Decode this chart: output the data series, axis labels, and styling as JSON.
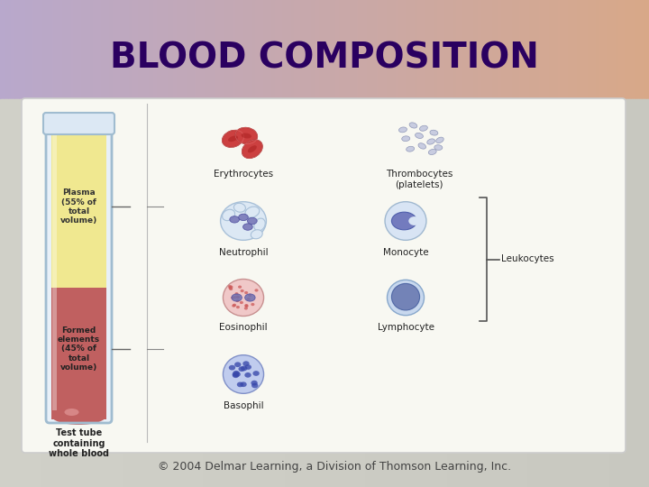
{
  "title": "BLOOD COMPOSITION",
  "title_color": "#2a0060",
  "title_fontsize": 28,
  "title_fontweight": "bold",
  "copyright_text": "© 2004 Delmar Learning, a Division of Thomson Learning, Inc.",
  "copyright_fontsize": 9,
  "plasma_label": "Plasma\n(55% of\ntotal\nvolume)",
  "formed_label": "Formed\nelements\n(45% of\ntotal\nvolume)",
  "tube_label": "Test tube\ncontaining\nwhole blood",
  "cell_labels": [
    "Erythrocytes",
    "Thrombocytes\n(platelets)",
    "Neutrophil",
    "Monocyte",
    "Eosinophil",
    "Lymphocyte",
    "Basophil"
  ],
  "leukocytes_label": "Leukocytes"
}
